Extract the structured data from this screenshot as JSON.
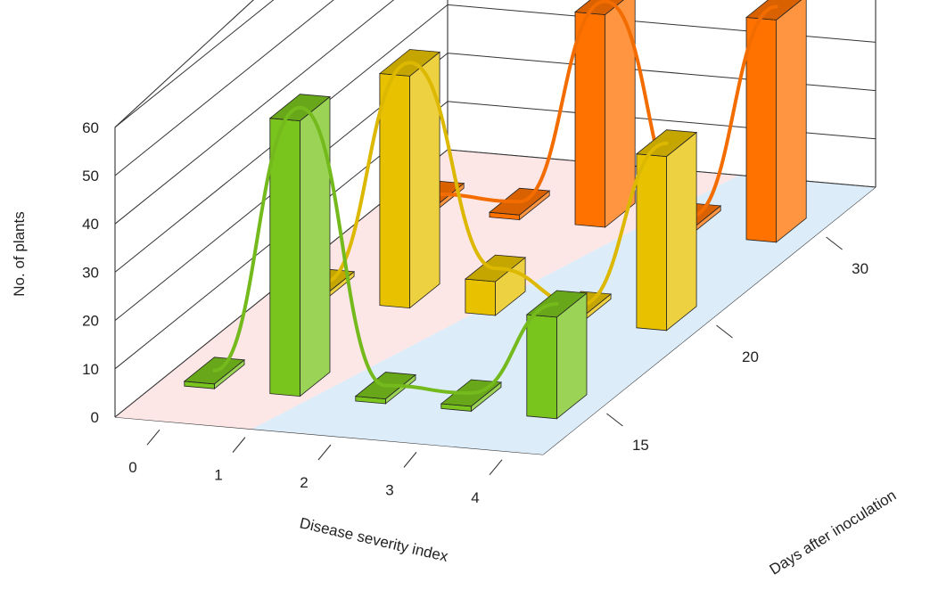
{
  "chart_data": {
    "type": "bar3d",
    "title": "",
    "xlabel": "Disease severity index",
    "ylabel": "No. of plants",
    "zlabel": "Days after inoculation",
    "x_categories": [
      "0",
      "1",
      "2",
      "3",
      "4"
    ],
    "z_categories": [
      "15",
      "20",
      "30"
    ],
    "yticks": [
      "0",
      "10",
      "20",
      "30",
      "40",
      "50",
      "60"
    ],
    "ylim": [
      0,
      60
    ],
    "series": [
      {
        "name": "15",
        "color": "#7ac41e",
        "values": [
          1,
          57,
          1,
          1,
          21
        ]
      },
      {
        "name": "20",
        "color": "#e8c200",
        "values": [
          1,
          48,
          7,
          1,
          36
        ]
      },
      {
        "name": "30",
        "color": "#ff7200",
        "values": [
          1,
          1,
          44,
          1,
          46
        ]
      }
    ],
    "floor_colors": {
      "front_left": "#fde6e6",
      "front_right": "#dcecf9"
    }
  }
}
